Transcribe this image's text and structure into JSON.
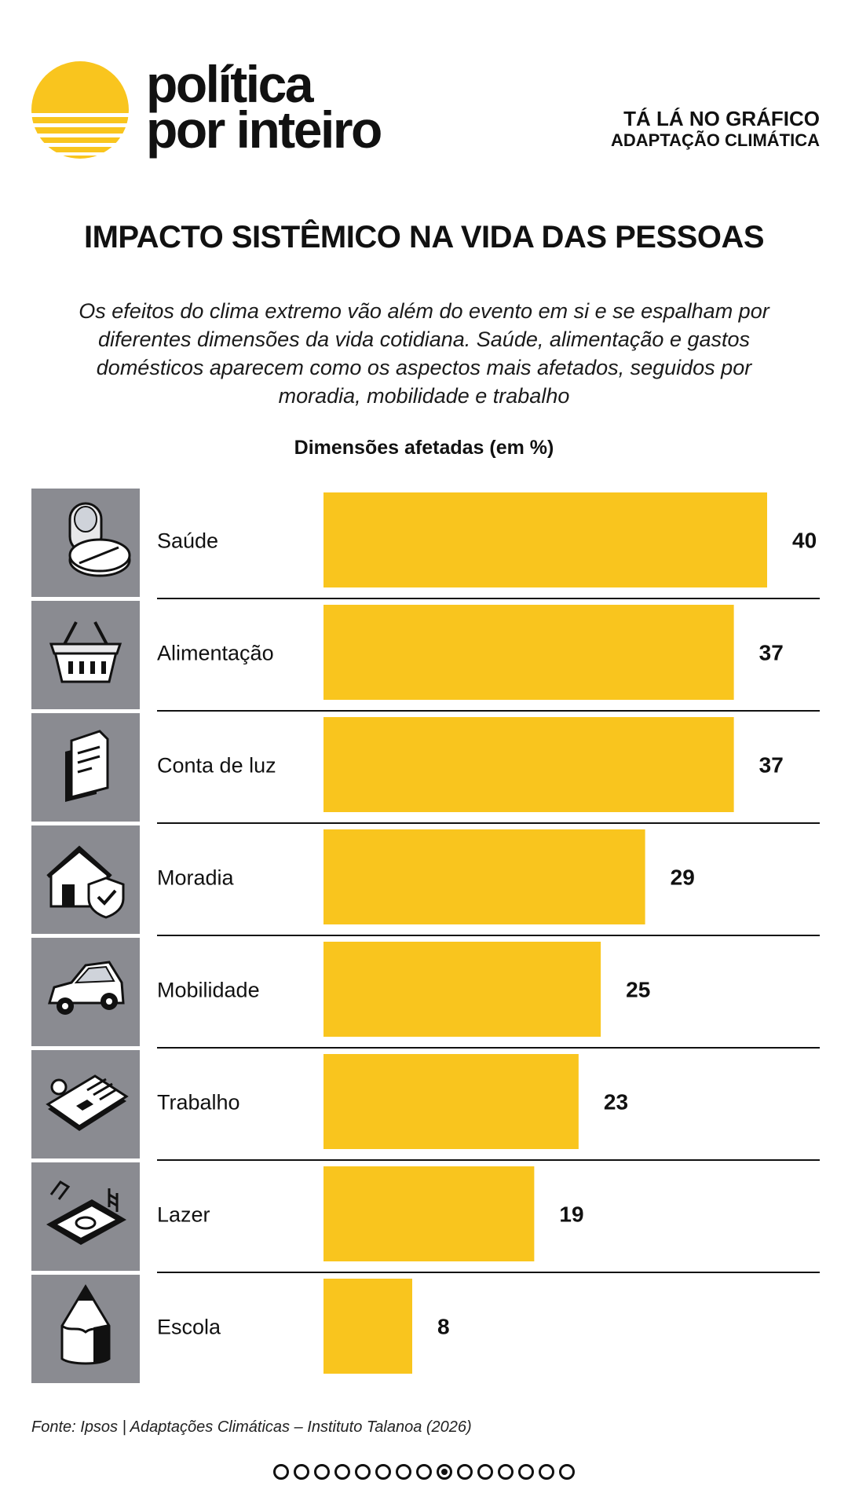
{
  "brand": {
    "line1": "política",
    "line2": "por inteiro",
    "accent_color": "#F9C51E"
  },
  "series": {
    "label": "TÁ LÁ NO GRÁFICO",
    "topic": "ADAPTAÇÃO CLIMÁTICA"
  },
  "title": "IMPACTO SISTÊMICO NA VIDA DAS PESSOAS",
  "subtitle": "Os efeitos do clima extremo vão além do evento em si e se espalham por diferentes dimensões da vida cotidiana. Saúde, alimentação e gastos domésticos aparecem como os aspectos mais afetados, seguidos por moradia, mobilidade e trabalho",
  "chart_data": {
    "type": "bar",
    "orientation": "horizontal",
    "title": "Dimensões afetadas (em %)",
    "categories": [
      "Saúde",
      "Alimentação",
      "Conta de luz",
      "Moradia",
      "Mobilidade",
      "Trabalho",
      "Lazer",
      "Escola"
    ],
    "values": [
      40,
      37,
      37,
      29,
      25,
      23,
      19,
      8
    ],
    "icons": [
      "pills-icon",
      "shopping-basket-icon",
      "bill-document-icon",
      "house-shield-icon",
      "car-icon",
      "id-badge-icon",
      "pool-icon",
      "pencil-icon"
    ],
    "xlabel": "",
    "ylabel": "",
    "xlim": [
      0,
      40
    ],
    "bar_color": "#F9C51E",
    "icon_bg_color": "#8A8B91"
  },
  "source": "Fonte: Ipsos | Adaptações Climáticas – Instituto Talanoa (2026)",
  "pagination": {
    "total": 15,
    "current": 9
  }
}
